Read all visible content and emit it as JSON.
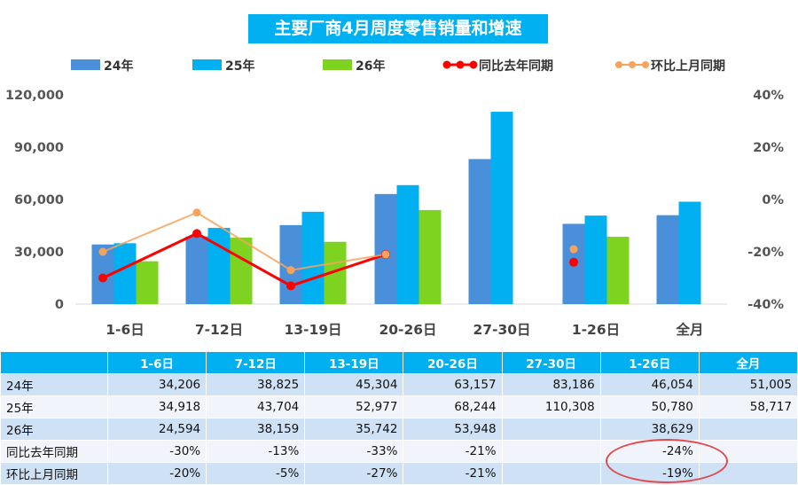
{
  "chart_data": {
    "type": "bar",
    "title": "主要厂商4月周度零售销量和增速",
    "categories": [
      "1-6日",
      "7-12日",
      "13-19日",
      "20-26日",
      "27-30日",
      "1-26日",
      "全月"
    ],
    "series": [
      {
        "name": "24年",
        "kind": "bar",
        "color": "#4a8fd9",
        "values": [
          34206,
          38825,
          45304,
          63157,
          83186,
          46054,
          51005
        ]
      },
      {
        "name": "25年",
        "kind": "bar",
        "color": "#00b0f0",
        "values": [
          34918,
          43704,
          52977,
          68244,
          110308,
          50780,
          58717
        ]
      },
      {
        "name": "26年",
        "kind": "bar",
        "color": "#7ed321",
        "values": [
          24594,
          38159,
          35742,
          53948,
          null,
          38629,
          null
        ]
      },
      {
        "name": "同比去年同期",
        "kind": "line",
        "axis": "right",
        "color": "#ff0000",
        "values": [
          -30,
          -13,
          -33,
          -21,
          null,
          -24,
          null
        ]
      },
      {
        "name": "环比上月同期",
        "kind": "line",
        "axis": "right",
        "color": "#f7a35c",
        "values": [
          -20,
          -5,
          -27,
          -21,
          null,
          -19,
          null
        ]
      }
    ],
    "ylim": [
      0,
      120000
    ],
    "yticks": [
      "0",
      "30,000",
      "60,000",
      "90,000",
      "120,000"
    ],
    "y2lim": [
      -40,
      40
    ],
    "y2ticks": [
      "-40%",
      "-20%",
      "0%",
      "20%",
      "40%"
    ],
    "legend": "top",
    "grid": false
  },
  "table": {
    "headers": [
      "",
      "1-6日",
      "7-12日",
      "13-19日",
      "20-26日",
      "27-30日",
      "1-26日",
      "全月"
    ],
    "rows": [
      {
        "label": "24年",
        "cells": [
          "34,206",
          "38,825",
          "45,304",
          "63,157",
          "83,186",
          "46,054",
          "51,005"
        ]
      },
      {
        "label": "25年",
        "cells": [
          "34,918",
          "43,704",
          "52,977",
          "68,244",
          "110,308",
          "50,780",
          "58,717"
        ]
      },
      {
        "label": "26年",
        "cells": [
          "24,594",
          "38,159",
          "35,742",
          "53,948",
          "",
          "38,629",
          ""
        ]
      },
      {
        "label": "同比去年同期",
        "cells": [
          "-30%",
          "-13%",
          "-33%",
          "-21%",
          "",
          "-24%",
          ""
        ]
      },
      {
        "label": "环比上月同期",
        "cells": [
          "-20%",
          "-5%",
          "-27%",
          "-21%",
          "",
          "-19%",
          ""
        ]
      }
    ]
  }
}
